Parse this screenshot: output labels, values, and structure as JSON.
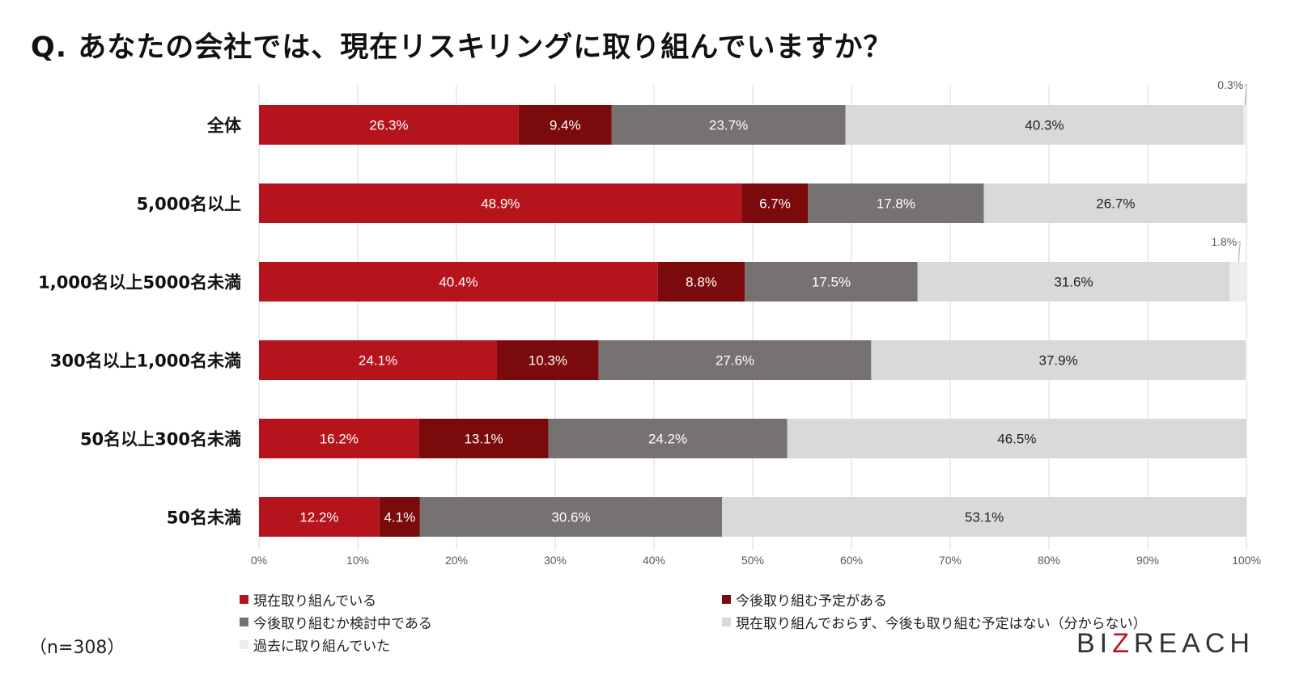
{
  "chart_data": {
    "type": "bar",
    "orientation": "horizontal",
    "stacked": true,
    "title": "Q. あなたの会社では、現在リスキリングに取り組んでいますか？",
    "categories": [
      "全体",
      "5,000名以上",
      "1,000名以上5000名未満",
      "300名以上1,000名未満",
      "50名以上300名未満",
      "50名未満"
    ],
    "series": [
      {
        "name": "現在取り組んでいる",
        "color": "#b5141c",
        "values": [
          26.3,
          48.9,
          40.4,
          24.1,
          16.2,
          12.2
        ]
      },
      {
        "name": "今後取り組む予定がある",
        "color": "#7a0a0c",
        "values": [
          9.4,
          6.7,
          8.8,
          10.3,
          13.1,
          4.1
        ]
      },
      {
        "name": "今後取り組むか検討中である",
        "color": "#777272",
        "values": [
          23.7,
          17.8,
          17.5,
          27.6,
          24.2,
          30.6
        ]
      },
      {
        "name": "現在取り組んでおらず、今後も取り組む予定はない（分からない）",
        "color": "#d9d9d9",
        "values": [
          40.3,
          26.7,
          31.6,
          37.9,
          46.5,
          53.1
        ]
      },
      {
        "name": "過去に取り組んでいた",
        "color": "#ededed",
        "values": [
          0.3,
          0,
          1.8,
          0,
          0,
          0
        ]
      }
    ],
    "xlim": [
      0,
      100
    ],
    "xticks": [
      "0%",
      "10%",
      "20%",
      "30%",
      "40%",
      "50%",
      "60%",
      "70%",
      "80%",
      "90%",
      "100%"
    ],
    "grid": true,
    "legend_position": "bottom"
  },
  "footer": {
    "sample_note": "（n=308）",
    "brand_prefix": "BI",
    "brand_z": "Z",
    "brand_suffix": "REACH"
  }
}
